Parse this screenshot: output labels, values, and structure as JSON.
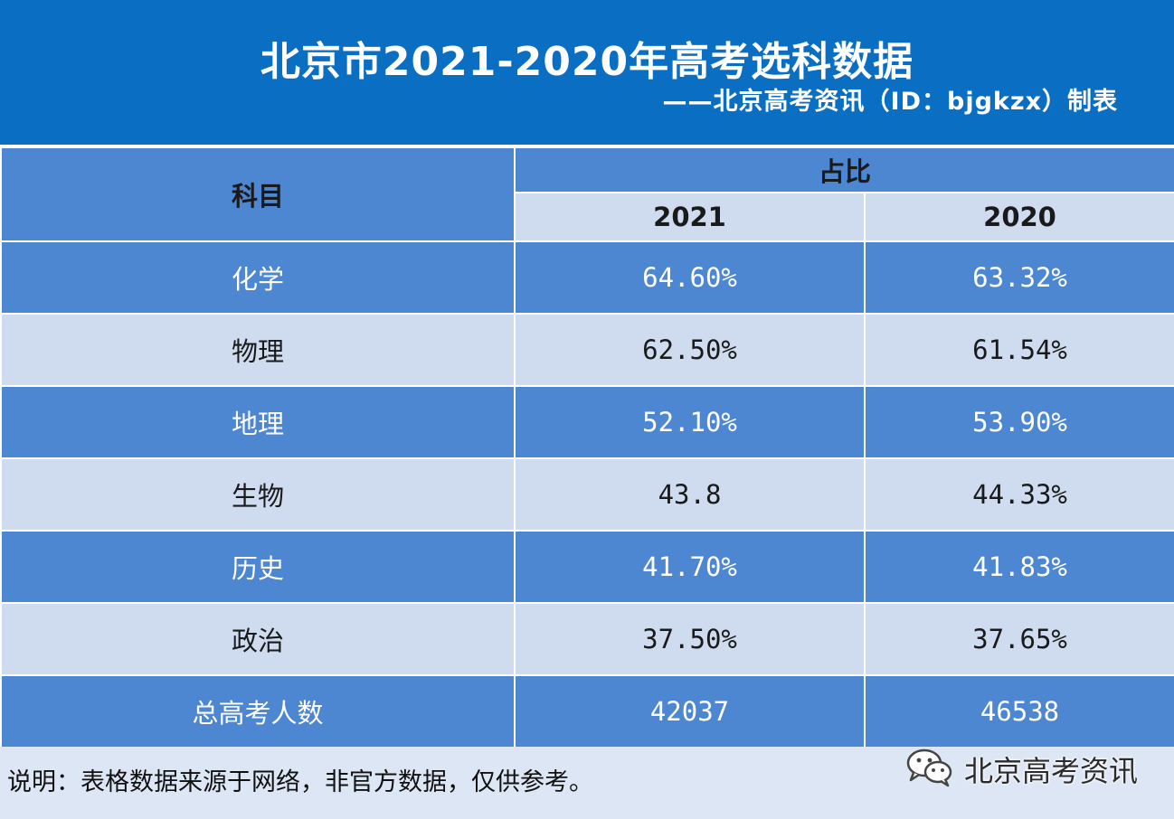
{
  "header": {
    "title": "北京市2021-2020年高考选科数据",
    "subtitle": "——北京高考资讯（ID：bjgkzx）制表"
  },
  "table": {
    "subject_header": "科目",
    "ratio_header": "占比",
    "years": [
      "2021",
      "2020"
    ],
    "rows": [
      {
        "subject": "化学",
        "v2021": "64.60%",
        "v2020": "63.32%"
      },
      {
        "subject": "物理",
        "v2021": "62.50%",
        "v2020": "61.54%"
      },
      {
        "subject": "地理",
        "v2021": "52.10%",
        "v2020": "53.90%"
      },
      {
        "subject": "生物",
        "v2021": "43.8",
        "v2020": "44.33%"
      },
      {
        "subject": "历史",
        "v2021": "41.70%",
        "v2020": "41.83%"
      },
      {
        "subject": "政治",
        "v2021": "37.50%",
        "v2020": "37.65%"
      },
      {
        "subject": "总高考人数",
        "v2021": "42037",
        "v2020": "46538"
      }
    ]
  },
  "footer": {
    "note": "说明：表格数据来源于网络，非官方数据，仅供参考。",
    "brand": "北京高考资讯",
    "brand_icon": "wechat-icon"
  },
  "colors": {
    "header_blue": "#0a6ec3",
    "row_dark": "#4d86d1",
    "row_light": "#cfdcef"
  }
}
